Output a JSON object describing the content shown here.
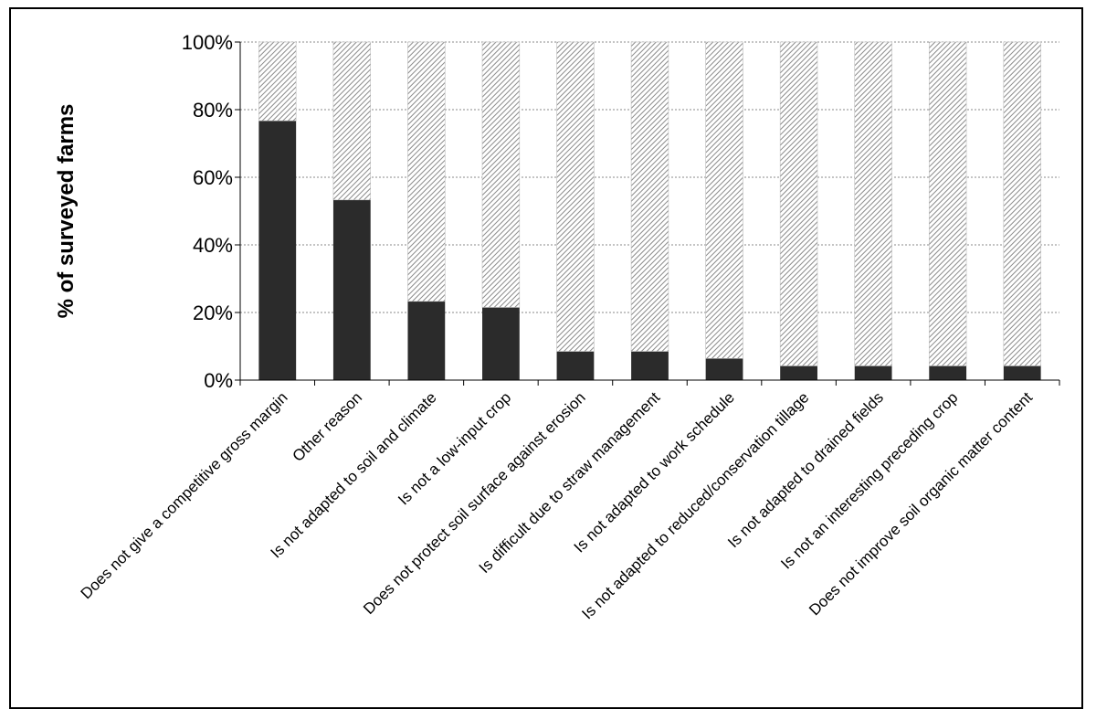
{
  "chart_data": {
    "type": "bar",
    "stacked": true,
    "title": "",
    "xlabel": "",
    "ylabel": "% of surveyed farms",
    "ylim": [
      0,
      100
    ],
    "yticks": [
      "0%",
      "20%",
      "40%",
      "60%",
      "80%",
      "100%"
    ],
    "grid": true,
    "legend": "none",
    "categories": [
      "Does not give a competitive gross margin",
      "Other reason",
      "Is not adapted to soil and climate",
      "Is not a low-input crop",
      "Does not protect soil surface against erosion",
      "Is difficult due to straw management",
      "Is not adapted to work schedule",
      "Is not adapted to reduced/conservation tillage",
      "Is not adapted to drained fields",
      "Is not an interesting preceding crop",
      "Does not improve soil organic matter content"
    ],
    "series": [
      {
        "color": "#2b2b2b",
        "pattern": "solid",
        "values": [
          76.7,
          53.3,
          23.3,
          21.5,
          8.5,
          8.5,
          6.4,
          4.2,
          4.2,
          4.2,
          4.2
        ]
      },
      {
        "color": "#9a9a9a",
        "pattern": "diagonal-hatch",
        "values": [
          23.3,
          46.7,
          76.7,
          78.5,
          91.5,
          91.5,
          93.6,
          95.8,
          95.8,
          95.8,
          95.8
        ]
      }
    ]
  }
}
